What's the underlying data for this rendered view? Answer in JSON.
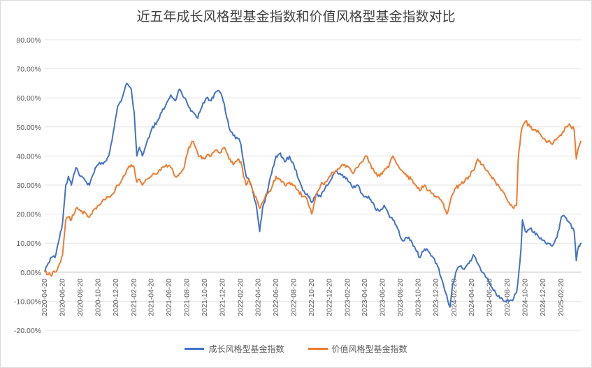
{
  "chart_data": {
    "type": "line",
    "title": "近五年成长风格型基金指数和价值风格型基金指数对比",
    "xlabel": "",
    "ylabel": "",
    "ylim": [
      -20,
      80
    ],
    "y_ticks": [
      80,
      70,
      60,
      50,
      40,
      30,
      20,
      10,
      0,
      -10,
      -20
    ],
    "y_tick_labels": [
      "80.00%",
      "70.00%",
      "60.00%",
      "50.00%",
      "40.00%",
      "30.00%",
      "20.00%",
      "10.00%",
      "0.00%",
      "-10.00%",
      "-20.00%"
    ],
    "x_tick_labels": [
      "2020-04-20",
      "2020-06-20",
      "2020-08-20",
      "2020-10-20",
      "2020-12-20",
      "2021-02-20",
      "2021-04-20",
      "2021-06-20",
      "2021-08-20",
      "2021-10-20",
      "2021-12-20",
      "2022-02-20",
      "2022-04-20",
      "2022-06-20",
      "2022-08-20",
      "2022-10-20",
      "2022-12-20",
      "2023-02-20",
      "2023-04-20",
      "2023-06-20",
      "2023-08-20",
      "2023-10-20",
      "2023-12-20",
      "2024-02-20",
      "2024-04-20",
      "2024-06-20",
      "2024-08-20",
      "2024-10-20",
      "2024-12-20",
      "2025-02-20"
    ],
    "x_range": [
      "2020-04-20",
      "2025-04-30"
    ],
    "grid": true,
    "legend_position": "bottom",
    "series": [
      {
        "name": "成长风格型基金指数",
        "color": "#4472c4",
        "points": [
          [
            "2020-04-20",
            0
          ],
          [
            "2020-05-10",
            5
          ],
          [
            "2020-05-25",
            5
          ],
          [
            "2020-06-10",
            12
          ],
          [
            "2020-06-20",
            17
          ],
          [
            "2020-07-01",
            30
          ],
          [
            "2020-07-10",
            33
          ],
          [
            "2020-07-20",
            30
          ],
          [
            "2020-08-05",
            36
          ],
          [
            "2020-08-20",
            33
          ],
          [
            "2020-09-10",
            31
          ],
          [
            "2020-09-20",
            30
          ],
          [
            "2020-10-10",
            36
          ],
          [
            "2020-10-20",
            37
          ],
          [
            "2020-11-10",
            38
          ],
          [
            "2020-11-25",
            40
          ],
          [
            "2020-12-10",
            48
          ],
          [
            "2020-12-25",
            57
          ],
          [
            "2021-01-10",
            60
          ],
          [
            "2021-01-25",
            65
          ],
          [
            "2021-02-10",
            63
          ],
          [
            "2021-02-20",
            55
          ],
          [
            "2021-03-01",
            40
          ],
          [
            "2021-03-10",
            43
          ],
          [
            "2021-03-20",
            40
          ],
          [
            "2021-04-05",
            45
          ],
          [
            "2021-04-20",
            49
          ],
          [
            "2021-05-10",
            52
          ],
          [
            "2021-05-25",
            55
          ],
          [
            "2021-06-10",
            58
          ],
          [
            "2021-06-25",
            61
          ],
          [
            "2021-07-10",
            59
          ],
          [
            "2021-07-25",
            63
          ],
          [
            "2021-08-10",
            60
          ],
          [
            "2021-08-25",
            57
          ],
          [
            "2021-09-10",
            55
          ],
          [
            "2021-09-25",
            53
          ],
          [
            "2021-10-10",
            57
          ],
          [
            "2021-10-25",
            60
          ],
          [
            "2021-11-10",
            59
          ],
          [
            "2021-11-25",
            62
          ],
          [
            "2021-12-10",
            62
          ],
          [
            "2021-12-25",
            58
          ],
          [
            "2022-01-10",
            50
          ],
          [
            "2022-01-25",
            47
          ],
          [
            "2022-02-10",
            46
          ],
          [
            "2022-02-20",
            44
          ],
          [
            "2022-03-01",
            38
          ],
          [
            "2022-03-10",
            33
          ],
          [
            "2022-03-20",
            32
          ],
          [
            "2022-04-01",
            28
          ],
          [
            "2022-04-15",
            22
          ],
          [
            "2022-04-25",
            14
          ],
          [
            "2022-05-05",
            22
          ],
          [
            "2022-05-20",
            27
          ],
          [
            "2022-06-05",
            34
          ],
          [
            "2022-06-20",
            40
          ],
          [
            "2022-07-05",
            41
          ],
          [
            "2022-07-20",
            38
          ],
          [
            "2022-08-05",
            40
          ],
          [
            "2022-08-20",
            37
          ],
          [
            "2022-09-05",
            32
          ],
          [
            "2022-09-20",
            28
          ],
          [
            "2022-10-05",
            27
          ],
          [
            "2022-10-20",
            24
          ],
          [
            "2022-11-05",
            27
          ],
          [
            "2022-11-20",
            26
          ],
          [
            "2022-12-05",
            29
          ],
          [
            "2022-12-20",
            31
          ],
          [
            "2023-01-10",
            35
          ],
          [
            "2023-01-25",
            34
          ],
          [
            "2023-02-10",
            33
          ],
          [
            "2023-02-25",
            31
          ],
          [
            "2023-03-10",
            29
          ],
          [
            "2023-03-25",
            30
          ],
          [
            "2023-04-10",
            27
          ],
          [
            "2023-04-25",
            26
          ],
          [
            "2023-05-10",
            25
          ],
          [
            "2023-05-25",
            22
          ],
          [
            "2023-06-10",
            21
          ],
          [
            "2023-06-25",
            23
          ],
          [
            "2023-07-10",
            20
          ],
          [
            "2023-07-25",
            18
          ],
          [
            "2023-08-10",
            15
          ],
          [
            "2023-08-25",
            11
          ],
          [
            "2023-09-10",
            12
          ],
          [
            "2023-09-25",
            11
          ],
          [
            "2023-10-10",
            8
          ],
          [
            "2023-10-25",
            5
          ],
          [
            "2023-11-10",
            8
          ],
          [
            "2023-11-25",
            7
          ],
          [
            "2023-12-10",
            5
          ],
          [
            "2023-12-25",
            2
          ],
          [
            "2024-01-10",
            -3
          ],
          [
            "2024-01-25",
            -8
          ],
          [
            "2024-02-05",
            -12
          ],
          [
            "2024-02-15",
            -4
          ],
          [
            "2024-02-25",
            0
          ],
          [
            "2024-03-10",
            2
          ],
          [
            "2024-03-25",
            1
          ],
          [
            "2024-04-10",
            3
          ],
          [
            "2024-04-25",
            6
          ],
          [
            "2024-05-10",
            3
          ],
          [
            "2024-05-25",
            0
          ],
          [
            "2024-06-10",
            -2
          ],
          [
            "2024-06-25",
            -5
          ],
          [
            "2024-07-10",
            -7
          ],
          [
            "2024-07-25",
            -9
          ],
          [
            "2024-08-10",
            -10
          ],
          [
            "2024-08-25",
            -10
          ],
          [
            "2024-09-10",
            -9
          ],
          [
            "2024-09-20",
            -7
          ],
          [
            "2024-09-25",
            -3
          ],
          [
            "2024-10-05",
            8
          ],
          [
            "2024-10-10",
            18
          ],
          [
            "2024-10-20",
            14
          ],
          [
            "2024-11-05",
            15
          ],
          [
            "2024-11-20",
            14
          ],
          [
            "2024-12-05",
            12
          ],
          [
            "2024-12-20",
            11
          ],
          [
            "2025-01-05",
            10
          ],
          [
            "2025-01-20",
            9
          ],
          [
            "2025-02-05",
            12
          ],
          [
            "2025-02-20",
            19
          ],
          [
            "2025-03-05",
            19
          ],
          [
            "2025-03-20",
            17
          ],
          [
            "2025-04-05",
            14
          ],
          [
            "2025-04-12",
            4
          ],
          [
            "2025-04-20",
            9
          ],
          [
            "2025-04-30",
            10
          ]
        ]
      },
      {
        "name": "价值风格型基金指数",
        "color": "#ed7d31",
        "points": [
          [
            "2020-04-20",
            0
          ],
          [
            "2020-05-10",
            -1
          ],
          [
            "2020-05-25",
            0
          ],
          [
            "2020-06-10",
            3
          ],
          [
            "2020-06-20",
            6
          ],
          [
            "2020-07-01",
            18
          ],
          [
            "2020-07-10",
            19
          ],
          [
            "2020-07-20",
            18
          ],
          [
            "2020-08-05",
            22
          ],
          [
            "2020-08-20",
            21
          ],
          [
            "2020-09-10",
            20
          ],
          [
            "2020-09-20",
            19
          ],
          [
            "2020-10-10",
            22
          ],
          [
            "2020-10-20",
            23
          ],
          [
            "2020-11-10",
            25
          ],
          [
            "2020-11-25",
            26
          ],
          [
            "2020-12-10",
            27
          ],
          [
            "2020-12-25",
            30
          ],
          [
            "2021-01-10",
            32
          ],
          [
            "2021-01-25",
            35
          ],
          [
            "2021-02-10",
            37
          ],
          [
            "2021-02-20",
            36
          ],
          [
            "2021-03-01",
            31
          ],
          [
            "2021-03-10",
            32
          ],
          [
            "2021-03-20",
            30
          ],
          [
            "2021-04-05",
            32
          ],
          [
            "2021-04-20",
            33
          ],
          [
            "2021-05-10",
            34
          ],
          [
            "2021-05-25",
            36
          ],
          [
            "2021-06-10",
            37
          ],
          [
            "2021-06-25",
            36
          ],
          [
            "2021-07-10",
            33
          ],
          [
            "2021-07-25",
            34
          ],
          [
            "2021-08-10",
            36
          ],
          [
            "2021-08-25",
            43
          ],
          [
            "2021-09-10",
            45
          ],
          [
            "2021-09-25",
            41
          ],
          [
            "2021-10-10",
            39
          ],
          [
            "2021-10-25",
            40
          ],
          [
            "2021-11-10",
            40
          ],
          [
            "2021-11-25",
            42
          ],
          [
            "2021-12-10",
            41
          ],
          [
            "2021-12-25",
            43
          ],
          [
            "2022-01-10",
            39
          ],
          [
            "2022-01-25",
            37
          ],
          [
            "2022-02-10",
            39
          ],
          [
            "2022-02-20",
            38
          ],
          [
            "2022-03-01",
            33
          ],
          [
            "2022-03-10",
            30
          ],
          [
            "2022-03-20",
            32
          ],
          [
            "2022-04-01",
            28
          ],
          [
            "2022-04-15",
            25
          ],
          [
            "2022-04-25",
            22
          ],
          [
            "2022-05-05",
            24
          ],
          [
            "2022-05-20",
            27
          ],
          [
            "2022-06-05",
            29
          ],
          [
            "2022-06-20",
            33
          ],
          [
            "2022-07-05",
            32
          ],
          [
            "2022-07-20",
            30
          ],
          [
            "2022-08-05",
            31
          ],
          [
            "2022-08-20",
            30
          ],
          [
            "2022-09-05",
            28
          ],
          [
            "2022-09-20",
            26
          ],
          [
            "2022-10-05",
            25
          ],
          [
            "2022-10-20",
            20
          ],
          [
            "2022-11-05",
            27
          ],
          [
            "2022-11-20",
            30
          ],
          [
            "2022-12-05",
            31
          ],
          [
            "2022-12-20",
            33
          ],
          [
            "2023-01-10",
            35
          ],
          [
            "2023-01-25",
            36
          ],
          [
            "2023-02-10",
            37
          ],
          [
            "2023-02-25",
            36
          ],
          [
            "2023-03-10",
            34
          ],
          [
            "2023-03-25",
            36
          ],
          [
            "2023-04-10",
            38
          ],
          [
            "2023-04-25",
            40
          ],
          [
            "2023-05-10",
            37
          ],
          [
            "2023-05-25",
            34
          ],
          [
            "2023-06-10",
            33
          ],
          [
            "2023-06-25",
            35
          ],
          [
            "2023-07-10",
            36
          ],
          [
            "2023-07-25",
            40
          ],
          [
            "2023-08-10",
            37
          ],
          [
            "2023-08-25",
            35
          ],
          [
            "2023-09-10",
            33
          ],
          [
            "2023-09-25",
            32
          ],
          [
            "2023-10-10",
            30
          ],
          [
            "2023-10-25",
            28
          ],
          [
            "2023-11-10",
            30
          ],
          [
            "2023-11-25",
            28
          ],
          [
            "2023-12-10",
            27
          ],
          [
            "2023-12-25",
            26
          ],
          [
            "2024-01-10",
            24
          ],
          [
            "2024-01-25",
            20
          ],
          [
            "2024-02-05",
            24
          ],
          [
            "2024-02-15",
            27
          ],
          [
            "2024-02-25",
            29
          ],
          [
            "2024-03-10",
            30
          ],
          [
            "2024-03-25",
            31
          ],
          [
            "2024-04-10",
            33
          ],
          [
            "2024-04-25",
            35
          ],
          [
            "2024-05-10",
            39
          ],
          [
            "2024-05-25",
            37
          ],
          [
            "2024-06-10",
            35
          ],
          [
            "2024-06-25",
            33
          ],
          [
            "2024-07-10",
            31
          ],
          [
            "2024-07-25",
            29
          ],
          [
            "2024-08-10",
            27
          ],
          [
            "2024-08-25",
            24
          ],
          [
            "2024-09-10",
            22
          ],
          [
            "2024-09-20",
            23
          ],
          [
            "2024-09-25",
            38
          ],
          [
            "2024-10-05",
            48
          ],
          [
            "2024-10-10",
            50
          ],
          [
            "2024-10-20",
            52
          ],
          [
            "2024-11-05",
            50
          ],
          [
            "2024-11-20",
            49
          ],
          [
            "2024-12-05",
            48
          ],
          [
            "2024-12-20",
            46
          ],
          [
            "2025-01-05",
            45
          ],
          [
            "2025-01-20",
            44
          ],
          [
            "2025-02-05",
            46
          ],
          [
            "2025-02-20",
            47
          ],
          [
            "2025-03-05",
            50
          ],
          [
            "2025-03-20",
            51
          ],
          [
            "2025-04-05",
            49
          ],
          [
            "2025-04-12",
            39
          ],
          [
            "2025-04-20",
            43
          ],
          [
            "2025-04-30",
            45
          ]
        ]
      }
    ]
  }
}
